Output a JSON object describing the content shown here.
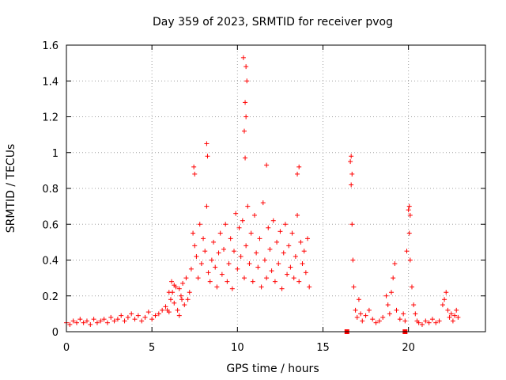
{
  "chart_data": {
    "type": "scatter",
    "title": "Day 359 of 2023, SRMTID for receiver pvog",
    "xlabel": "GPS time / hours",
    "ylabel": "SRMTID / TECUs",
    "xlim": [
      0,
      24.5
    ],
    "ylim": [
      0,
      1.6
    ],
    "xticks": [
      0,
      5,
      10,
      15,
      20
    ],
    "yticks": [
      0,
      0.2,
      0.4,
      0.6,
      0.8,
      1,
      1.2,
      1.4,
      1.6
    ],
    "xtick_labels": [
      "0",
      "5",
      "10",
      "15",
      "20"
    ],
    "ytick_labels": [
      "0",
      "0.2",
      "0.4",
      "0.6",
      "0.8",
      "1",
      "1.2",
      "1.4",
      "1.6"
    ],
    "grid": true,
    "marker": "+",
    "color": "#ff0000",
    "series": [
      {
        "name": "SRMTID",
        "x": [
          0.0,
          0.2,
          0.4,
          0.6,
          0.8,
          1.0,
          1.2,
          1.4,
          1.6,
          1.8,
          2.0,
          2.2,
          2.4,
          2.6,
          2.8,
          3.0,
          3.2,
          3.4,
          3.6,
          3.8,
          4.0,
          4.2,
          4.4,
          4.6,
          4.8,
          5.0,
          5.2,
          5.4,
          5.6,
          5.8,
          6.0,
          6.1,
          6.2,
          6.3,
          6.4,
          6.5,
          6.6,
          6.7,
          6.8,
          6.9,
          7.0,
          7.1,
          7.2,
          7.3,
          7.4,
          7.5,
          7.6,
          7.7,
          7.8,
          7.9,
          8.0,
          8.1,
          8.2,
          8.3,
          8.4,
          8.5,
          8.6,
          8.7,
          8.8,
          8.9,
          9.0,
          9.1,
          9.2,
          9.3,
          9.4,
          9.5,
          9.6,
          9.7,
          9.8,
          9.9,
          10.0,
          10.1,
          10.2,
          10.3,
          10.4,
          10.5,
          10.6,
          10.7,
          10.8,
          10.9,
          11.0,
          11.1,
          11.2,
          11.3,
          11.4,
          11.5,
          11.6,
          11.7,
          11.8,
          11.9,
          12.0,
          12.1,
          12.2,
          12.3,
          12.4,
          12.5,
          12.6,
          12.7,
          12.8,
          12.9,
          13.0,
          13.1,
          13.2,
          13.3,
          13.4,
          13.5,
          13.6,
          13.7,
          13.8,
          13.9,
          14.0,
          14.1,
          14.2,
          16.6,
          16.65,
          16.7,
          16.75,
          16.8,
          16.9,
          17.0,
          17.1,
          17.2,
          17.3,
          17.5,
          17.7,
          17.9,
          18.1,
          18.3,
          18.5,
          18.7,
          18.8,
          18.9,
          19.0,
          19.1,
          19.2,
          19.3,
          19.5,
          19.7,
          19.8,
          19.9,
          20.0,
          20.05,
          20.1,
          20.2,
          20.3,
          20.4,
          20.5,
          20.6,
          20.8,
          21.0,
          21.2,
          21.4,
          21.6,
          21.8,
          22.0,
          22.1,
          22.2,
          22.3,
          22.4,
          22.5,
          22.6,
          22.7,
          22.8,
          22.9,
          10.35,
          10.45,
          10.5,
          10.55,
          10.4,
          10.45,
          10.5,
          7.45,
          7.5,
          8.2,
          8.25,
          16.65,
          16.7,
          20.05,
          20.1,
          11.7,
          13.5,
          13.6,
          5.9,
          6.0,
          6.15,
          6.3,
          6.6,
          6.75
        ],
        "y": [
          0.05,
          0.04,
          0.06,
          0.05,
          0.07,
          0.05,
          0.06,
          0.04,
          0.07,
          0.05,
          0.06,
          0.07,
          0.05,
          0.08,
          0.06,
          0.07,
          0.09,
          0.06,
          0.08,
          0.1,
          0.07,
          0.09,
          0.06,
          0.08,
          0.11,
          0.07,
          0.09,
          0.1,
          0.12,
          0.14,
          0.11,
          0.18,
          0.22,
          0.16,
          0.25,
          0.12,
          0.09,
          0.2,
          0.27,
          0.15,
          0.3,
          0.18,
          0.22,
          0.35,
          0.55,
          0.48,
          0.42,
          0.3,
          0.6,
          0.38,
          0.52,
          0.45,
          0.7,
          0.33,
          0.28,
          0.4,
          0.5,
          0.36,
          0.25,
          0.44,
          0.55,
          0.32,
          0.46,
          0.6,
          0.28,
          0.38,
          0.52,
          0.24,
          0.45,
          0.66,
          0.35,
          0.58,
          0.42,
          0.62,
          0.3,
          0.48,
          0.7,
          0.38,
          0.55,
          0.28,
          0.65,
          0.44,
          0.36,
          0.52,
          0.25,
          0.72,
          0.4,
          0.3,
          0.58,
          0.46,
          0.34,
          0.62,
          0.28,
          0.5,
          0.38,
          0.56,
          0.24,
          0.44,
          0.6,
          0.32,
          0.48,
          0.36,
          0.55,
          0.3,
          0.42,
          0.65,
          0.28,
          0.5,
          0.38,
          0.45,
          0.33,
          0.52,
          0.25,
          0.95,
          0.82,
          0.6,
          0.4,
          0.25,
          0.12,
          0.08,
          0.18,
          0.1,
          0.06,
          0.09,
          0.12,
          0.07,
          0.05,
          0.06,
          0.08,
          0.2,
          0.15,
          0.1,
          0.22,
          0.3,
          0.38,
          0.12,
          0.07,
          0.1,
          0.06,
          0.45,
          0.68,
          0.55,
          0.4,
          0.25,
          0.15,
          0.1,
          0.06,
          0.05,
          0.04,
          0.06,
          0.05,
          0.07,
          0.05,
          0.06,
          0.15,
          0.18,
          0.22,
          0.12,
          0.08,
          0.1,
          0.06,
          0.09,
          0.12,
          0.08,
          1.53,
          1.28,
          1.48,
          1.4,
          1.12,
          0.97,
          1.2,
          0.92,
          0.88,
          1.05,
          0.98,
          0.98,
          0.88,
          0.7,
          0.65,
          0.93,
          0.88,
          0.92,
          0.12,
          0.22,
          0.28,
          0.26,
          0.24,
          0.18
        ]
      }
    ],
    "boundary_markers": [
      {
        "x": 16.4,
        "y": 0
      },
      {
        "x": 19.8,
        "y": 0
      }
    ]
  }
}
